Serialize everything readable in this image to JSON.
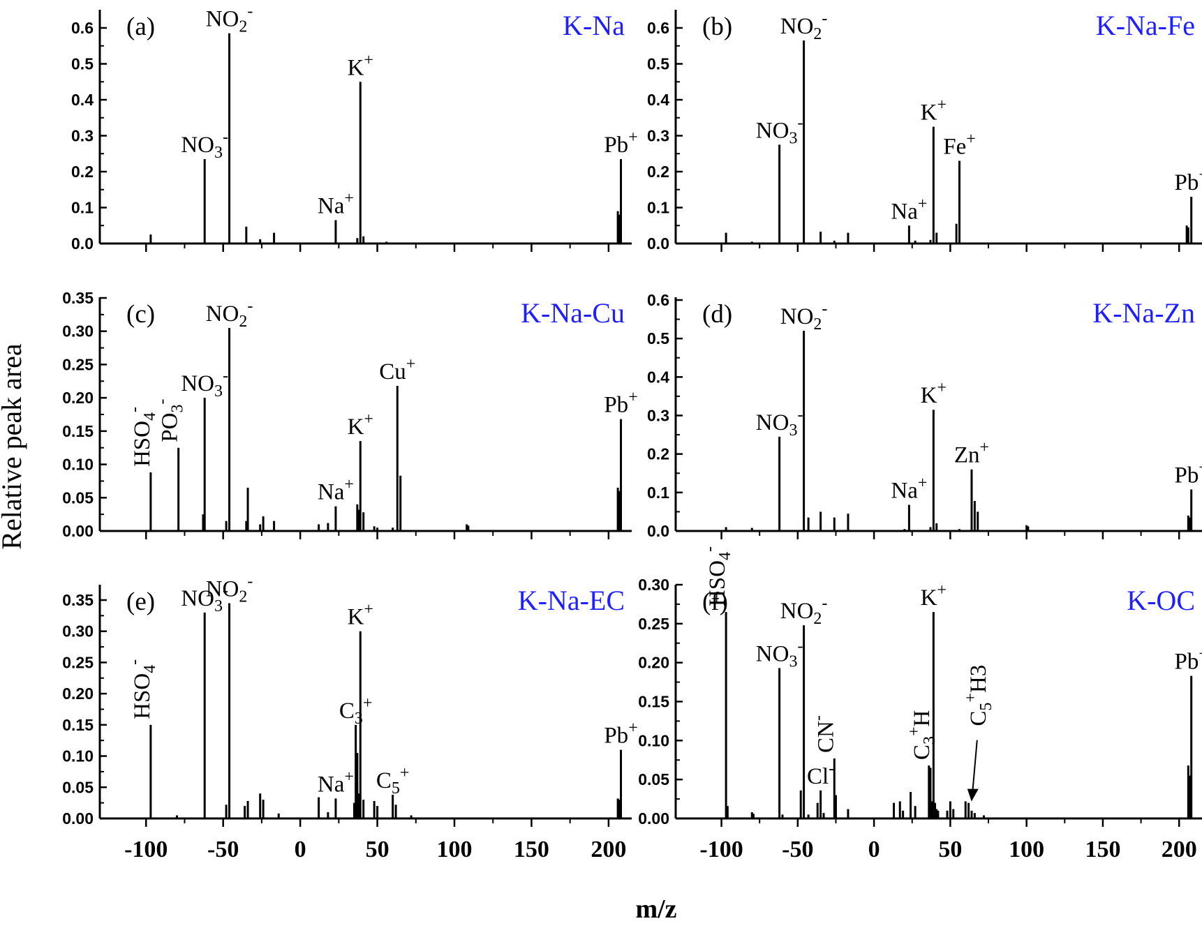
{
  "chart_data": {
    "type": "bar",
    "xlabel": "m/z",
    "ylabel": "Relative peak area",
    "xlim": [
      -130,
      215
    ],
    "x_ticks": [
      "-100",
      "-50",
      "0",
      "50",
      "100",
      "150",
      "200"
    ],
    "x_tick_values": [
      -100,
      -50,
      0,
      50,
      100,
      150,
      200
    ],
    "panels": [
      {
        "id": "a",
        "panel_label": "(a)",
        "name": "K-Na",
        "ylim": [
          0,
          0.65
        ],
        "y_ticks": [
          "0.0",
          "0.1",
          "0.2",
          "0.3",
          "0.4",
          "0.5",
          "0.6"
        ],
        "y_tick_values": [
          0,
          0.1,
          0.2,
          0.3,
          0.4,
          0.5,
          0.6
        ],
        "peaks": [
          [
            -97,
            0.025
          ],
          [
            -62,
            0.235
          ],
          [
            -46,
            0.585
          ],
          [
            -35,
            0.047
          ],
          [
            -26,
            0.012
          ],
          [
            -17,
            0.03
          ],
          [
            23,
            0.065
          ],
          [
            37,
            0.015
          ],
          [
            39,
            0.45
          ],
          [
            41,
            0.02
          ],
          [
            56,
            0.005
          ],
          [
            206,
            0.09
          ],
          [
            207,
            0.08
          ],
          [
            208,
            0.235
          ]
        ],
        "labels": [
          {
            "base": "NO",
            "sub": "3",
            "sup": "-",
            "x": -62,
            "y": 0.235
          },
          {
            "base": "NO",
            "sub": "2",
            "sup": "-",
            "x": -46,
            "y": 0.585
          },
          {
            "base": "Na",
            "sub": "",
            "sup": "+",
            "x": 23,
            "y": 0.065
          },
          {
            "base": "K",
            "sub": "",
            "sup": "+",
            "x": 39,
            "y": 0.45
          },
          {
            "base": "Pb",
            "sub": "",
            "sup": "+",
            "x": 208,
            "y": 0.235
          }
        ]
      },
      {
        "id": "b",
        "panel_label": "(b)",
        "name": "K-Na-Fe",
        "ylim": [
          0,
          0.65
        ],
        "y_ticks": [
          "0.0",
          "0.1",
          "0.2",
          "0.3",
          "0.4",
          "0.5",
          "0.6"
        ],
        "y_tick_values": [
          0,
          0.1,
          0.2,
          0.3,
          0.4,
          0.5,
          0.6
        ],
        "peaks": [
          [
            -97,
            0.03
          ],
          [
            -80,
            0.005
          ],
          [
            -62,
            0.275
          ],
          [
            -46,
            0.565
          ],
          [
            -35,
            0.033
          ],
          [
            -26,
            0.008
          ],
          [
            -17,
            0.03
          ],
          [
            23,
            0.05
          ],
          [
            27,
            0.008
          ],
          [
            37,
            0.01
          ],
          [
            39,
            0.325
          ],
          [
            41,
            0.03
          ],
          [
            54,
            0.055
          ],
          [
            56,
            0.23
          ],
          [
            205,
            0.05
          ],
          [
            206,
            0.045
          ],
          [
            208,
            0.13
          ]
        ],
        "labels": [
          {
            "base": "NO",
            "sub": "3",
            "sup": "-",
            "x": -62,
            "y": 0.275
          },
          {
            "base": "NO",
            "sub": "2",
            "sup": "-",
            "x": -46,
            "y": 0.565
          },
          {
            "base": "Na",
            "sub": "",
            "sup": "+",
            "x": 23,
            "y": 0.05
          },
          {
            "base": "K",
            "sub": "",
            "sup": "+",
            "x": 39,
            "y": 0.325
          },
          {
            "base": "Fe",
            "sub": "",
            "sup": "+",
            "x": 56,
            "y": 0.23
          },
          {
            "base": "Pb",
            "sub": "",
            "sup": "+",
            "x": 208,
            "y": 0.13
          }
        ]
      },
      {
        "id": "c",
        "panel_label": "(c)",
        "name": "K-Na-Cu",
        "ylim": [
          0,
          0.35
        ],
        "y_ticks": [
          "0.00",
          "0.05",
          "0.10",
          "0.15",
          "0.20",
          "0.25",
          "0.30",
          "0.35"
        ],
        "y_tick_values": [
          0,
          0.05,
          0.1,
          0.15,
          0.2,
          0.25,
          0.3,
          0.35
        ],
        "peaks": [
          [
            -97,
            0.088
          ],
          [
            -79,
            0.125
          ],
          [
            -63,
            0.025
          ],
          [
            -62,
            0.2
          ],
          [
            -48,
            0.015
          ],
          [
            -46,
            0.305
          ],
          [
            -35,
            0.015
          ],
          [
            -34,
            0.065
          ],
          [
            -26,
            0.01
          ],
          [
            -24,
            0.022
          ],
          [
            -17,
            0.015
          ],
          [
            12,
            0.01
          ],
          [
            18,
            0.012
          ],
          [
            23,
            0.037
          ],
          [
            37,
            0.04
          ],
          [
            38,
            0.032
          ],
          [
            39,
            0.135
          ],
          [
            41,
            0.028
          ],
          [
            48,
            0.007
          ],
          [
            50,
            0.005
          ],
          [
            60,
            0.005
          ],
          [
            63,
            0.218
          ],
          [
            65,
            0.083
          ],
          [
            108,
            0.01
          ],
          [
            109,
            0.008
          ],
          [
            206,
            0.065
          ],
          [
            207,
            0.06
          ],
          [
            208,
            0.168
          ]
        ],
        "labels": [
          {
            "base": "HSO",
            "sub": "4",
            "sup": "-",
            "x": -97,
            "y": 0.088,
            "rotated": true
          },
          {
            "base": "PO",
            "sub": "3",
            "sup": "-",
            "x": -79,
            "y": 0.125,
            "rotated": true
          },
          {
            "base": "NO",
            "sub": "3",
            "sup": "-",
            "x": -62,
            "y": 0.2
          },
          {
            "base": "NO",
            "sub": "2",
            "sup": "-",
            "x": -46,
            "y": 0.305
          },
          {
            "base": "Na",
            "sub": "",
            "sup": "+",
            "x": 23,
            "y": 0.037
          },
          {
            "base": "K",
            "sub": "",
            "sup": "+",
            "x": 39,
            "y": 0.135
          },
          {
            "base": "Cu",
            "sub": "",
            "sup": "+",
            "x": 63,
            "y": 0.218
          },
          {
            "base": "Pb",
            "sub": "",
            "sup": "+",
            "x": 208,
            "y": 0.168
          }
        ]
      },
      {
        "id": "d",
        "panel_label": "(d)",
        "name": "K-Na-Zn",
        "ylim": [
          0,
          0.6
        ],
        "y_ticks": [
          "0.0",
          "0.1",
          "0.2",
          "0.3",
          "0.4",
          "0.5",
          "0.6"
        ],
        "y_tick_values": [
          0,
          0.1,
          0.2,
          0.3,
          0.4,
          0.5,
          0.6
        ],
        "peaks": [
          [
            -97,
            0.01
          ],
          [
            -80,
            0.008
          ],
          [
            -62,
            0.245
          ],
          [
            -46,
            0.52
          ],
          [
            -43,
            0.035
          ],
          [
            -35,
            0.05
          ],
          [
            -26,
            0.035
          ],
          [
            -17,
            0.045
          ],
          [
            20,
            0.005
          ],
          [
            23,
            0.068
          ],
          [
            37,
            0.01
          ],
          [
            39,
            0.315
          ],
          [
            41,
            0.02
          ],
          [
            56,
            0.005
          ],
          [
            64,
            0.16
          ],
          [
            66,
            0.078
          ],
          [
            68,
            0.05
          ],
          [
            100,
            0.015
          ],
          [
            101,
            0.012
          ],
          [
            206,
            0.04
          ],
          [
            207,
            0.035
          ],
          [
            208,
            0.108
          ]
        ],
        "labels": [
          {
            "base": "NO",
            "sub": "3",
            "sup": "-",
            "x": -62,
            "y": 0.245
          },
          {
            "base": "NO",
            "sub": "2",
            "sup": "-",
            "x": -46,
            "y": 0.52
          },
          {
            "base": "Na",
            "sub": "",
            "sup": "+",
            "x": 23,
            "y": 0.068
          },
          {
            "base": "K",
            "sub": "",
            "sup": "+",
            "x": 39,
            "y": 0.315
          },
          {
            "base": "Zn",
            "sub": "",
            "sup": "+",
            "x": 64,
            "y": 0.16
          },
          {
            "base": "Pb",
            "sub": "",
            "sup": "+",
            "x": 208,
            "y": 0.108
          }
        ]
      },
      {
        "id": "e",
        "panel_label": "(e)",
        "name": "K-Na-EC",
        "ylim": [
          0,
          0.375
        ],
        "y_ticks": [
          "0.00",
          "0.05",
          "0.10",
          "0.15",
          "0.20",
          "0.25",
          "0.30",
          "0.35"
        ],
        "y_tick_values": [
          0,
          0.05,
          0.1,
          0.15,
          0.2,
          0.25,
          0.3,
          0.35
        ],
        "peaks": [
          [
            -97,
            0.15
          ],
          [
            -80,
            0.005
          ],
          [
            -62,
            0.33
          ],
          [
            -48,
            0.022
          ],
          [
            -46,
            0.345
          ],
          [
            -36,
            0.02
          ],
          [
            -34,
            0.028
          ],
          [
            -26,
            0.04
          ],
          [
            -24,
            0.03
          ],
          [
            -14,
            0.008
          ],
          [
            12,
            0.034
          ],
          [
            18,
            0.01
          ],
          [
            23,
            0.032
          ],
          [
            35,
            0.025
          ],
          [
            36,
            0.15
          ],
          [
            37,
            0.105
          ],
          [
            38,
            0.04
          ],
          [
            39,
            0.3
          ],
          [
            41,
            0.03
          ],
          [
            48,
            0.028
          ],
          [
            50,
            0.02
          ],
          [
            60,
            0.038
          ],
          [
            62,
            0.022
          ],
          [
            72,
            0.005
          ],
          [
            206,
            0.032
          ],
          [
            207,
            0.03
          ],
          [
            208,
            0.11
          ]
        ],
        "labels": [
          {
            "base": "HSO",
            "sub": "4",
            "sup": "-",
            "x": -97,
            "y": 0.15,
            "rotated": true
          },
          {
            "base": "NO",
            "sub": "3",
            "sup": "-",
            "x": -62,
            "y": 0.33
          },
          {
            "base": "NO",
            "sub": "2",
            "sup": "-",
            "x": -46,
            "y": 0.345
          },
          {
            "base": "Na",
            "sub": "",
            "sup": "+",
            "x": 23,
            "y": 0.032
          },
          {
            "base": "C",
            "sub": "3",
            "sup": "+",
            "x": 36,
            "y": 0.15
          },
          {
            "base": "K",
            "sub": "",
            "sup": "+",
            "x": 39,
            "y": 0.3
          },
          {
            "base": "C",
            "sub": "5",
            "sup": "+",
            "x": 60,
            "y": 0.038
          },
          {
            "base": "Pb",
            "sub": "",
            "sup": "+",
            "x": 208,
            "y": 0.11
          }
        ]
      },
      {
        "id": "f",
        "panel_label": "(f)",
        "name": "K-OC",
        "ylim": [
          0,
          0.3
        ],
        "y_ticks": [
          "0.00",
          "0.05",
          "0.10",
          "0.15",
          "0.20",
          "0.25",
          "0.30"
        ],
        "y_tick_values": [
          0,
          0.05,
          0.1,
          0.15,
          0.2,
          0.25,
          0.3
        ],
        "peaks": [
          [
            -97,
            0.265
          ],
          [
            -96,
            0.016
          ],
          [
            -80,
            0.008
          ],
          [
            -79,
            0.006
          ],
          [
            -62,
            0.193
          ],
          [
            -60,
            0.005
          ],
          [
            -48,
            0.036
          ],
          [
            -46,
            0.248
          ],
          [
            -43,
            0.005
          ],
          [
            -37,
            0.02
          ],
          [
            -35,
            0.036
          ],
          [
            -33,
            0.007
          ],
          [
            -26,
            0.077
          ],
          [
            -25,
            0.03
          ],
          [
            -17,
            0.012
          ],
          [
            13,
            0.02
          ],
          [
            17,
            0.022
          ],
          [
            19,
            0.01
          ],
          [
            24,
            0.034
          ],
          [
            27,
            0.016
          ],
          [
            36,
            0.068
          ],
          [
            37,
            0.065
          ],
          [
            38,
            0.022
          ],
          [
            39,
            0.265
          ],
          [
            40,
            0.02
          ],
          [
            41,
            0.012
          ],
          [
            42,
            0.01
          ],
          [
            48,
            0.01
          ],
          [
            50,
            0.022
          ],
          [
            52,
            0.012
          ],
          [
            60,
            0.022
          ],
          [
            62,
            0.02
          ],
          [
            64,
            0.01
          ],
          [
            66,
            0.007
          ],
          [
            72,
            0.004
          ],
          [
            206,
            0.068
          ],
          [
            207,
            0.055
          ],
          [
            208,
            0.183
          ]
        ],
        "labels": [
          {
            "base": "HSO",
            "sub": "4",
            "sup": "-",
            "x": -97,
            "y": 0.265,
            "rotated": true
          },
          {
            "base": "NO",
            "sub": "3",
            "sup": "-",
            "x": -62,
            "y": 0.193
          },
          {
            "base": "NO",
            "sub": "2",
            "sup": "-",
            "x": -46,
            "y": 0.248
          },
          {
            "base": "Cl",
            "sub": "",
            "sup": "-",
            "x": -35,
            "y": 0.036
          },
          {
            "base": "CN",
            "sub": "",
            "sup": "-",
            "x": -26,
            "y": 0.077,
            "rotated": true
          },
          {
            "base": "C",
            "sub": "3",
            "sup": "+",
            "base2": "H",
            "x": 37,
            "y": 0.068,
            "rotated": true
          },
          {
            "base": "K",
            "sub": "",
            "sup": "+",
            "x": 39,
            "y": 0.265
          },
          {
            "base": "C",
            "sub": "5",
            "sup": "+",
            "base2": "H3",
            "x": 63,
            "y": 0.02,
            "rotated": true,
            "arrow": true
          },
          {
            "base": "Pb",
            "sub": "",
            "sup": "+",
            "x": 208,
            "y": 0.183
          }
        ]
      }
    ]
  }
}
